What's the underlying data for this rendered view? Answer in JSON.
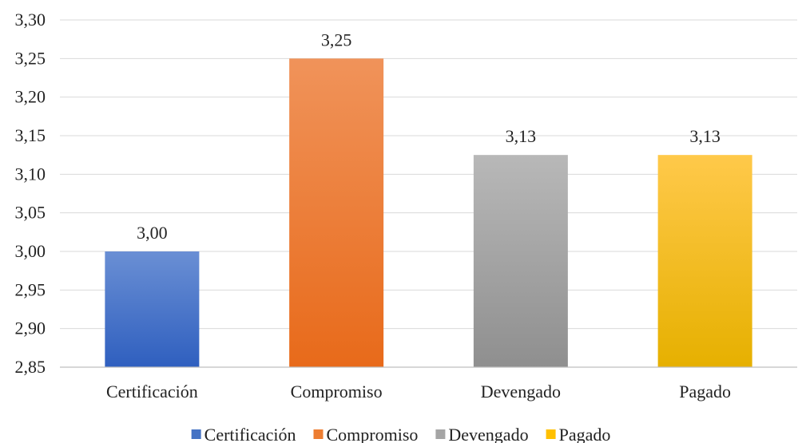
{
  "chart_data": {
    "type": "bar",
    "categories": [
      "Certificación",
      "Compromiso",
      "Devengado",
      "Pagado"
    ],
    "values": [
      3.0,
      3.25,
      3.125,
      3.125
    ],
    "data_labels": [
      "3,00",
      "3,25",
      "3,13",
      "3,13"
    ],
    "ylim": [
      2.85,
      3.3
    ],
    "y_ticks": [
      "2,85",
      "2,90",
      "2,95",
      "3,00",
      "3,05",
      "3,10",
      "3,15",
      "3,20",
      "3,25",
      "3,30"
    ],
    "y_tick_values": [
      2.85,
      2.9,
      2.95,
      3.0,
      3.05,
      3.1,
      3.15,
      3.2,
      3.25,
      3.3
    ],
    "grid": true,
    "legend_position": "bottom",
    "legend": [
      "Certificación",
      "Compromiso",
      "Devengado",
      "Pagado"
    ],
    "colors": [
      {
        "top": "#6a8fd4",
        "bottom": "#2f5fbf"
      },
      {
        "top": "#f0935a",
        "bottom": "#e86a1a"
      },
      {
        "top": "#b8b8b8",
        "bottom": "#8f8f8f"
      },
      {
        "top": "#ffc94a",
        "bottom": "#e6b000"
      }
    ],
    "legend_colors": [
      "#4472c4",
      "#ed7d31",
      "#a5a5a5",
      "#ffc000"
    ]
  }
}
